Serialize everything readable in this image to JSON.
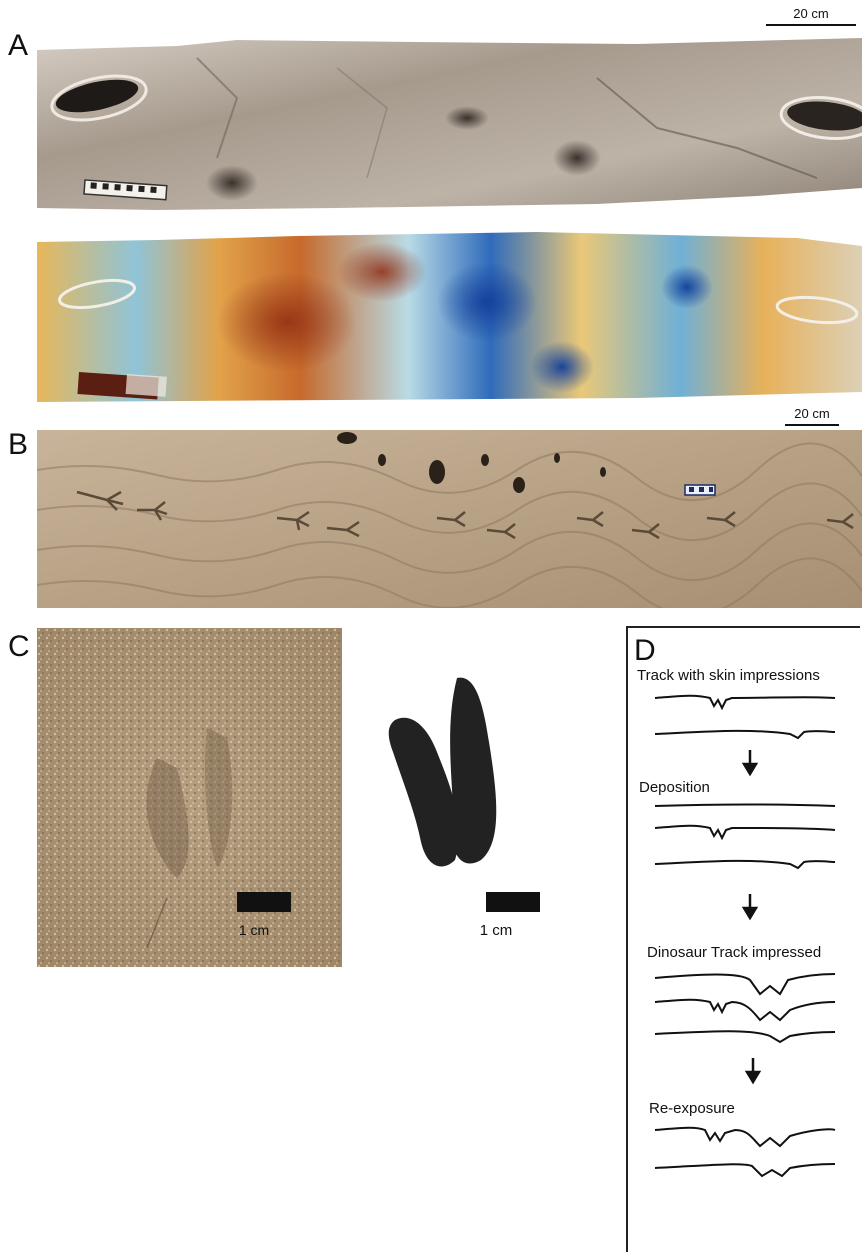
{
  "panels": {
    "a": {
      "letter": "A",
      "scale_label": "20 cm"
    },
    "b": {
      "letter": "B",
      "scale_label": "20 cm"
    },
    "c": {
      "letter": "C",
      "photo_scale_label": "1 cm",
      "drawing_scale_label": "1 cm"
    },
    "d": {
      "letter": "D",
      "steps": [
        {
          "label": "Track with skin impressions"
        },
        {
          "label": "Deposition"
        },
        {
          "label": "Dinosaur Track impressed"
        },
        {
          "label": "Re-exposure"
        }
      ]
    }
  }
}
